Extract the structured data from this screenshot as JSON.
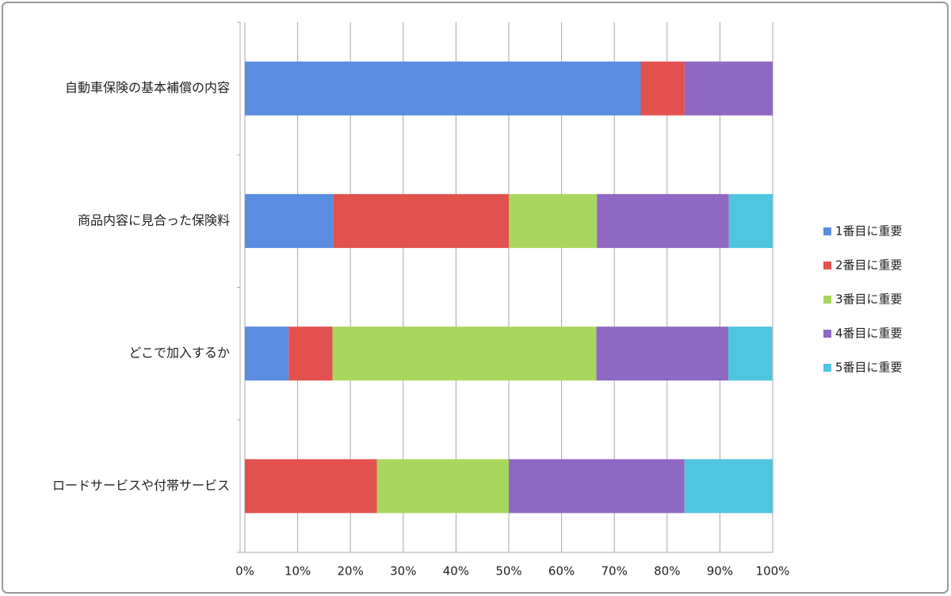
{
  "chart_data": {
    "type": "stacked-bar-horizontal",
    "categories": [
      "自動車保険の基本補償の内容",
      "商品内容に見合った保険料",
      "どこで加入するか",
      "ロードサービスや付帯サービス"
    ],
    "series": [
      {
        "name": "1番目に重要",
        "color": "#5a8de0",
        "values": [
          75,
          16.7,
          8.3,
          0
        ]
      },
      {
        "name": "2番目に重要",
        "color": "#e2514d",
        "values": [
          8.3,
          33.3,
          8.3,
          25
        ]
      },
      {
        "name": "3番目に重要",
        "color": "#a9d65e",
        "values": [
          0,
          16.7,
          50,
          25
        ]
      },
      {
        "name": "4番目に重要",
        "color": "#8f68c3",
        "values": [
          16.7,
          25,
          25,
          33.3
        ]
      },
      {
        "name": "5番目に重要",
        "color": "#4fc5e0",
        "values": [
          0,
          8.3,
          8.3,
          16.7
        ]
      }
    ],
    "xlim": [
      0,
      100
    ],
    "xticks": [
      {
        "value": 0,
        "label": "0%"
      },
      {
        "value": 10,
        "label": "10%"
      },
      {
        "value": 20,
        "label": "20%"
      },
      {
        "value": 30,
        "label": "30%"
      },
      {
        "value": 40,
        "label": "40%"
      },
      {
        "value": 50,
        "label": "50%"
      },
      {
        "value": 60,
        "label": "60%"
      },
      {
        "value": 70,
        "label": "70%"
      },
      {
        "value": 80,
        "label": "80%"
      },
      {
        "value": 90,
        "label": "90%"
      },
      {
        "value": 100,
        "label": "100%"
      }
    ],
    "grid": true,
    "legend": "right"
  }
}
